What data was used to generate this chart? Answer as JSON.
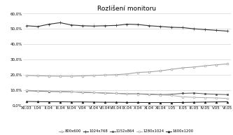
{
  "title": "Rozlišení monitoru",
  "x_labels": [
    "XII.03",
    "I.04",
    "II.04",
    "III.04",
    "IV.04",
    "V.04",
    "VI.04",
    "VII.04",
    "VIII.04",
    "IX.04",
    "X.04",
    "XI.04",
    "XII.04",
    "I.05",
    "II.05",
    "III.05",
    "IV.05",
    "V.05",
    "VI.05"
  ],
  "series": {
    "800x600": {
      "color": "#999999",
      "marker": "o",
      "marker_face": "white",
      "marker_edge": "#999999",
      "linewidth": 0.7,
      "markersize": 2.0,
      "values": [
        19.5,
        19.3,
        19.1,
        19.0,
        19.0,
        19.2,
        19.5,
        19.8,
        20.0,
        20.5,
        21.5,
        21.8,
        22.5,
        23.5,
        24.5,
        25.0,
        25.8,
        26.5,
        27.0
      ]
    },
    "1024x768": {
      "color": "#333333",
      "marker": "+",
      "marker_face": "#333333",
      "marker_edge": "#333333",
      "linewidth": 0.8,
      "markersize": 3.0,
      "values": [
        52.0,
        51.5,
        53.0,
        54.0,
        52.5,
        52.0,
        51.8,
        52.0,
        52.2,
        53.0,
        52.8,
        52.0,
        51.5,
        51.0,
        50.8,
        50.0,
        49.5,
        49.0,
        48.5
      ]
    },
    "1152x864": {
      "color": "#555555",
      "marker": "s",
      "marker_face": "#555555",
      "marker_edge": "#555555",
      "linewidth": 0.7,
      "markersize": 2.0,
      "values": [
        9.5,
        9.3,
        9.0,
        9.0,
        8.8,
        8.5,
        8.3,
        8.0,
        7.8,
        7.5,
        7.5,
        7.3,
        7.0,
        7.2,
        7.8,
        8.0,
        7.5,
        7.2,
        7.0
      ]
    },
    "1280x1024": {
      "color": "#aaaaaa",
      "marker": "o",
      "marker_face": "white",
      "marker_edge": "#aaaaaa",
      "linewidth": 0.7,
      "markersize": 2.0,
      "values": [
        9.8,
        9.5,
        9.3,
        9.0,
        8.8,
        8.5,
        8.3,
        8.0,
        7.8,
        7.5,
        7.3,
        7.0,
        6.8,
        6.5,
        5.5,
        5.2,
        5.0,
        4.8,
        4.5
      ]
    },
    "1600x1200": {
      "color": "#222222",
      "marker": "^",
      "marker_face": "#222222",
      "marker_edge": "#222222",
      "linewidth": 0.7,
      "markersize": 2.0,
      "values": [
        2.5,
        2.4,
        2.3,
        2.3,
        2.2,
        2.2,
        2.1,
        2.0,
        2.0,
        1.9,
        1.9,
        1.8,
        1.8,
        1.8,
        1.9,
        2.0,
        2.1,
        2.2,
        2.3
      ]
    }
  },
  "ylim": [
    0,
    60
  ],
  "yticks": [
    0,
    10,
    20,
    30,
    40,
    50,
    60
  ],
  "ytick_labels": [
    "0,0%",
    "10,0%",
    "20,0%",
    "30,0%",
    "40,0%",
    "50,0%",
    "60,0%"
  ],
  "legend_order": [
    "800x600",
    "1024x768",
    "1152x864",
    "1280x1024",
    "1600x1200"
  ],
  "background_color": "#ffffff",
  "grid_color": "#cccccc",
  "title_fontsize": 6.5,
  "tick_fontsize": 4.0,
  "legend_fontsize": 3.8
}
